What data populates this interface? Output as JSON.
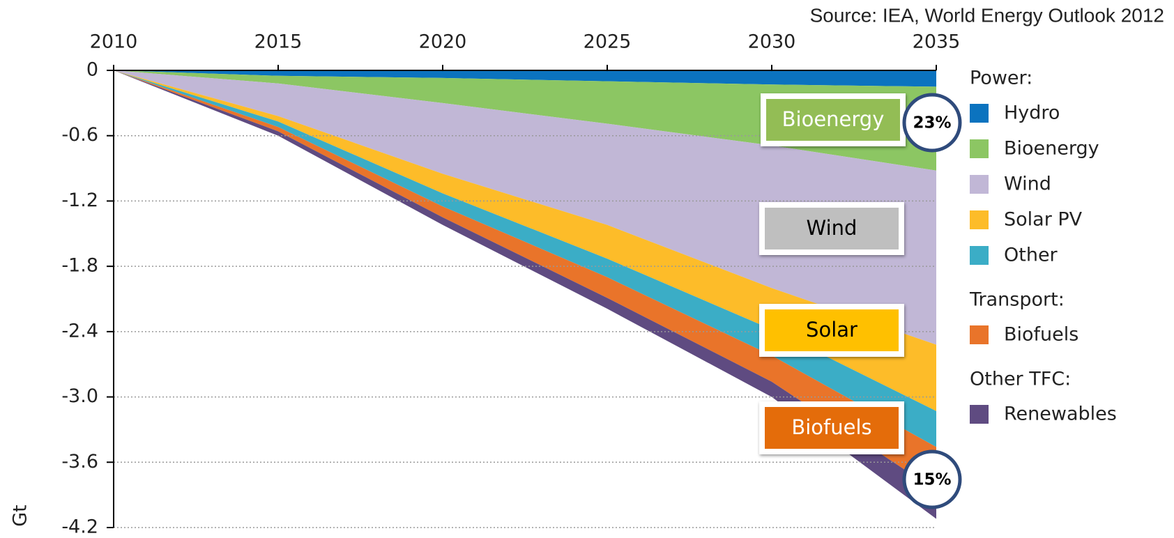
{
  "chart_data": {
    "type": "stacked_area",
    "source": "Source: IEA, World Energy Outlook 2012",
    "y_label": "Gt",
    "x": [
      2010,
      2015,
      2020,
      2025,
      2030,
      2035
    ],
    "xlim": [
      2010,
      2035
    ],
    "xticks": [
      2010,
      2015,
      2020,
      2025,
      2030,
      2035
    ],
    "ylim": [
      -4.2,
      0
    ],
    "yticks": [
      0,
      -0.6,
      -1.2,
      -1.8,
      -2.4,
      {
        "value": -3.0,
        "label": "-3.0"
      },
      -3.6,
      -4.2
    ],
    "grid": true,
    "legend": "right",
    "series": [
      {
        "name": "Hydro",
        "group": "Power:",
        "color": "#0b73bf",
        "values": [
          0,
          -0.05,
          -0.07,
          -0.1,
          -0.13,
          -0.15
        ]
      },
      {
        "name": "Bioenergy",
        "group": "Power:",
        "color": "#8cc663",
        "values": [
          0,
          -0.07,
          -0.23,
          -0.39,
          -0.56,
          -0.77
        ]
      },
      {
        "name": "Wind",
        "group": "Power:",
        "color": "#c1b7d6",
        "values": [
          0,
          -0.3,
          -0.65,
          -0.93,
          -1.31,
          -1.6
        ]
      },
      {
        "name": "Solar PV",
        "group": "Power:",
        "color": "#fdbc29",
        "values": [
          0,
          -0.05,
          -0.18,
          -0.31,
          -0.38,
          -0.61
        ]
      },
      {
        "name": "Other",
        "group": "Power:",
        "color": "#3badc6",
        "values": [
          0,
          -0.05,
          -0.12,
          -0.17,
          -0.24,
          -0.33
        ]
      },
      {
        "name": "Biofuels",
        "group": "Transport:",
        "color": "#e9742a",
        "values": [
          0,
          -0.04,
          -0.1,
          -0.19,
          -0.24,
          -0.4
        ]
      },
      {
        "name": "Renewables",
        "group": "Other TFC:",
        "color": "#5f4b81",
        "values": [
          0,
          -0.04,
          -0.07,
          -0.1,
          -0.14,
          -0.26
        ]
      }
    ],
    "annotations": [
      {
        "text": "Bioenergy",
        "color": "#93bd55",
        "text_color": "#ffffff"
      },
      {
        "text": "Wind",
        "color": "#bfbfbf",
        "text_color": "#000000"
      },
      {
        "text": "Solar",
        "color": "#ffc000",
        "text_color": "#000000"
      },
      {
        "text": "Biofuels",
        "color": "#e46c0a",
        "text_color": "#ffffff"
      },
      {
        "text": "23%",
        "color": "#ffffff",
        "text_color": "#000000"
      },
      {
        "text": "15%",
        "color": "#ffffff",
        "text_color": "#000000"
      }
    ]
  }
}
